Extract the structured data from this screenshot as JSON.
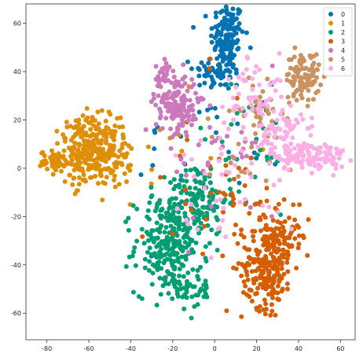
{
  "chart_data": {
    "type": "scatter",
    "title": "",
    "xlabel": "",
    "ylabel": "",
    "xlim": [
      -90,
      67
    ],
    "ylim": [
      -71,
      68
    ],
    "xticks": [
      -80,
      -60,
      -40,
      -20,
      0,
      20,
      40,
      60
    ],
    "yticks": [
      -60,
      -40,
      -20,
      0,
      20,
      40,
      60
    ],
    "grid": false,
    "legend_position": "top-right",
    "series": [
      {
        "name": "0",
        "color": "#0173b2",
        "clusters": [
          {
            "cx": 6,
            "cy": 55,
            "sx": 4,
            "sy": 7,
            "n": 130
          },
          {
            "cx": 2,
            "cy": 40,
            "sx": 6,
            "sy": 4,
            "n": 60
          },
          {
            "cx": -2,
            "cy": 10,
            "sx": 18,
            "sy": 20,
            "n": 30
          }
        ]
      },
      {
        "name": "1",
        "color": "#de8f05",
        "clusters": [
          {
            "cx": -60,
            "cy": 7,
            "sx": 7,
            "sy": 7,
            "n": 280
          },
          {
            "cx": -77,
            "cy": 3,
            "sx": 3,
            "sy": 2,
            "n": 50
          },
          {
            "cx": -46,
            "cy": 5,
            "sx": 3,
            "sy": 6,
            "n": 40
          },
          {
            "cx": -25,
            "cy": 10,
            "sx": 16,
            "sy": 16,
            "n": 15
          }
        ]
      },
      {
        "name": "2",
        "color": "#029e73",
        "clusters": [
          {
            "cx": -22,
            "cy": -32,
            "sx": 8,
            "sy": 10,
            "n": 250
          },
          {
            "cx": -8,
            "cy": -13,
            "sx": 7,
            "sy": 7,
            "n": 130
          },
          {
            "cx": -12,
            "cy": -50,
            "sx": 6,
            "sy": 4,
            "n": 40
          },
          {
            "cx": 15,
            "cy": 5,
            "sx": 15,
            "sy": 15,
            "n": 30
          }
        ]
      },
      {
        "name": "3",
        "color": "#d55e00",
        "clusters": [
          {
            "cx": 25,
            "cy": -40,
            "sx": 6,
            "sy": 9,
            "n": 220
          },
          {
            "cx": 35,
            "cy": -28,
            "sx": 5,
            "sy": 5,
            "n": 50
          },
          {
            "cx": 15,
            "cy": -15,
            "sx": 10,
            "sy": 8,
            "n": 30
          },
          {
            "cx": -5,
            "cy": -5,
            "sx": 15,
            "sy": 20,
            "n": 25
          }
        ]
      },
      {
        "name": "4",
        "color": "#cc78bc",
        "clusters": [
          {
            "cx": -18,
            "cy": 27,
            "sx": 5,
            "sy": 6,
            "n": 150
          },
          {
            "cx": -25,
            "cy": 38,
            "sx": 2,
            "sy": 3,
            "n": 30
          },
          {
            "cx": 5,
            "cy": 5,
            "sx": 15,
            "sy": 15,
            "n": 35
          }
        ]
      },
      {
        "name": "5",
        "color": "#ca9161",
        "clusters": [
          {
            "cx": 42,
            "cy": 38,
            "sx": 4,
            "sy": 5,
            "n": 100
          },
          {
            "cx": 22,
            "cy": 25,
            "sx": 5,
            "sy": 5,
            "n": 40
          },
          {
            "cx": 15,
            "cy": 5,
            "sx": 12,
            "sy": 10,
            "n": 15
          }
        ]
      },
      {
        "name": "6",
        "color": "#fbafe4",
        "clusters": [
          {
            "cx": 45,
            "cy": 5,
            "sx": 9,
            "sy": 3,
            "n": 130
          },
          {
            "cx": 32,
            "cy": 15,
            "sx": 5,
            "sy": 5,
            "n": 60
          },
          {
            "cx": 20,
            "cy": 32,
            "sx": 7,
            "sy": 8,
            "n": 50
          },
          {
            "cx": 10,
            "cy": 0,
            "sx": 15,
            "sy": 15,
            "n": 50
          }
        ]
      }
    ]
  }
}
